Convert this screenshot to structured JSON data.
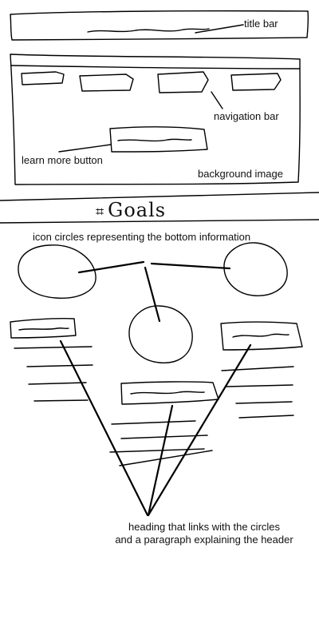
{
  "labels": {
    "title_bar": "title bar",
    "navigation_bar": "navigation bar",
    "learn_more_button": "learn more button",
    "background_image": "background image",
    "section_heading": "Goals",
    "icon_circles": "icon circles representing the bottom information",
    "heading_note_line1": "heading that links with the circles",
    "heading_note_line2": "and a paragraph explaining the header"
  },
  "icons": {
    "section_mark": "hash-mark-icon"
  }
}
